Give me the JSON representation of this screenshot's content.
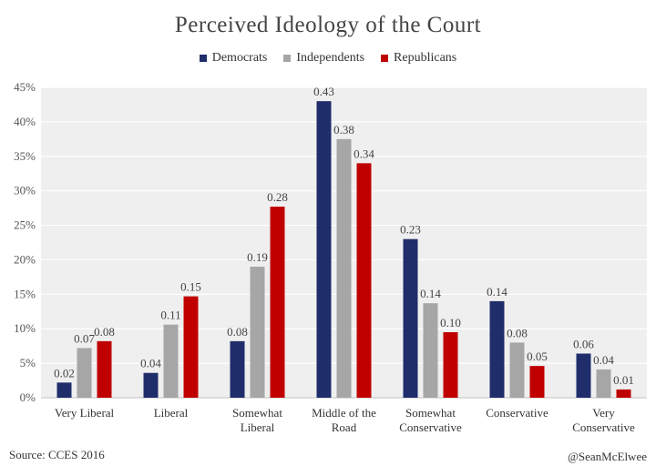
{
  "chart_data": {
    "type": "bar",
    "title": "Perceived Ideology of the Court",
    "categories": [
      [
        "Very Liberal"
      ],
      [
        "Liberal"
      ],
      [
        "Somewhat",
        "Liberal"
      ],
      [
        "Middle of the",
        "Road"
      ],
      [
        "Somewhat",
        "Conservative"
      ],
      [
        "Conservative"
      ],
      [
        "Very",
        "Conservative"
      ]
    ],
    "series": [
      {
        "name": "Democrats",
        "color": "#1f2d6b",
        "values": [
          0.022,
          0.036,
          0.082,
          0.43,
          0.23,
          0.14,
          0.064
        ],
        "labels": [
          "0.02",
          "0.04",
          "0.08",
          "0.43",
          "0.23",
          "0.14",
          "0.06"
        ]
      },
      {
        "name": "Independents",
        "color": "#a6a6a6",
        "values": [
          0.072,
          0.106,
          0.19,
          0.375,
          0.137,
          0.08,
          0.041
        ],
        "labels": [
          "0.07",
          "0.11",
          "0.19",
          "0.38",
          "0.14",
          "0.08",
          "0.04"
        ]
      },
      {
        "name": "Republicans",
        "color": "#c00000",
        "values": [
          0.082,
          0.147,
          0.277,
          0.34,
          0.095,
          0.046,
          0.012
        ],
        "labels": [
          "0.08",
          "0.15",
          "0.28",
          "0.34",
          "0.10",
          "0.05",
          "0.01"
        ]
      }
    ],
    "ylim": [
      0,
      0.45
    ],
    "yticks": [
      "0%",
      "5%",
      "10%",
      "15%",
      "20%",
      "25%",
      "30%",
      "35%",
      "40%",
      "45%"
    ],
    "grid": true,
    "legend_position": "top"
  },
  "footer": {
    "source": "Source: CCES 2016",
    "handle": "@SeanMcElwee"
  }
}
